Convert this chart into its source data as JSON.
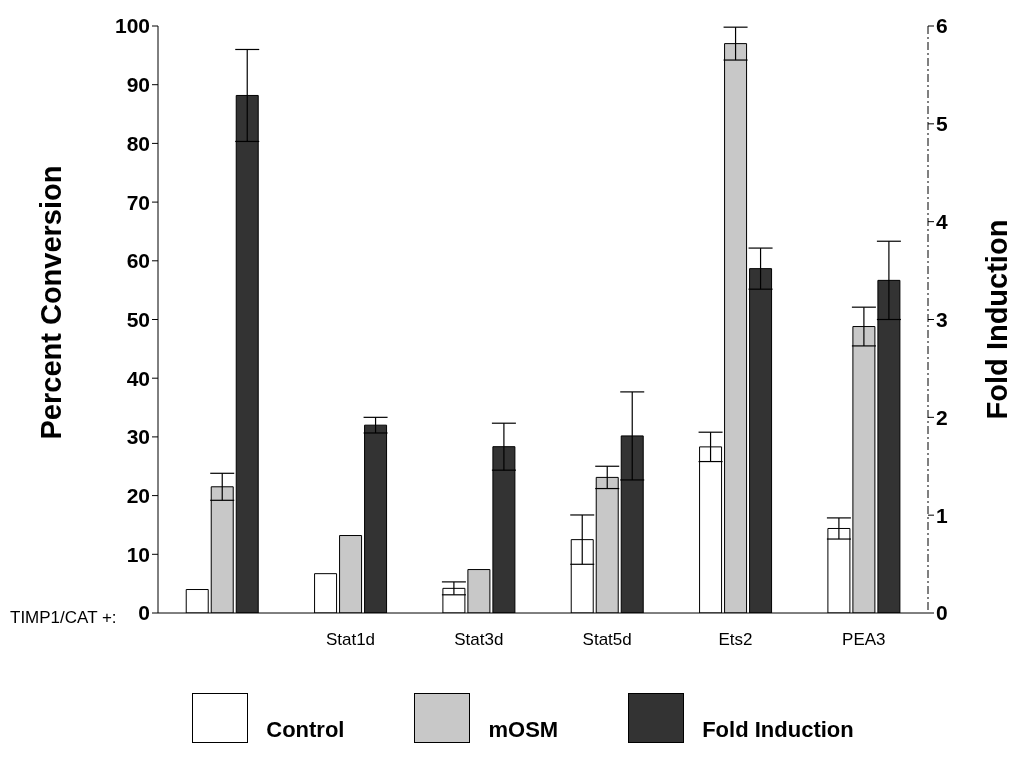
{
  "chart_data": {
    "type": "bar",
    "ylabel": "Percent Conversion",
    "y2label": "Fold Induction",
    "xlabel": "TIMP1/CAT +:",
    "categories": [
      null,
      "Stat1d",
      "Stat3d",
      "Stat5d",
      "Ets2",
      "PEA3"
    ],
    "series": [
      {
        "name": "Control",
        "color": "#ffffff",
        "values": [
          4.0,
          6.7,
          4.2,
          12.5,
          28.3,
          14.4
        ],
        "errors": [
          null,
          null,
          1.1,
          4.2,
          2.5,
          1.8
        ]
      },
      {
        "name": "mOSM",
        "color": "#c8c8c8",
        "values": [
          21.5,
          13.2,
          7.4,
          23.1,
          97,
          48.8
        ],
        "errors": [
          2.3,
          null,
          null,
          1.9,
          2.8,
          3.3
        ]
      },
      {
        "name": "Fold Induction",
        "color": "#333333",
        "axis": "y2",
        "values": [
          5.29,
          1.92,
          1.7,
          1.81,
          3.52,
          3.4
        ],
        "errors": [
          0.47,
          0.08,
          0.24,
          0.45,
          0.21,
          0.4
        ]
      }
    ],
    "ylim": [
      0,
      100
    ],
    "yticks": [
      0,
      10,
      20,
      30,
      40,
      50,
      60,
      70,
      80,
      90,
      100
    ],
    "y2lim": [
      0,
      6
    ],
    "y2ticks": [
      0,
      1,
      2,
      3,
      4,
      5,
      6
    ],
    "grid": false,
    "legend": "bottom"
  }
}
